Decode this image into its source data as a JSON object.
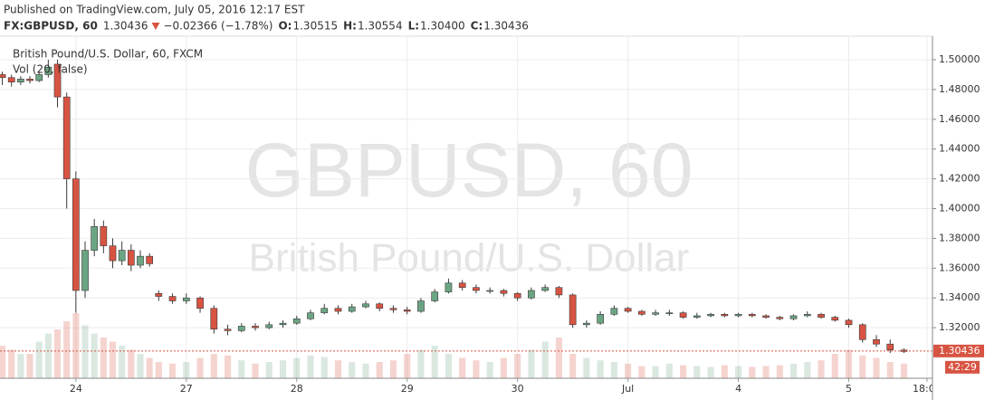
{
  "header": {
    "published": "Published on TradingView.com, July 05, 2016 12:17 EST",
    "symbol": "FX:GBPUSD, 60",
    "last": "1.30436",
    "change": "−0.02366 (−1.78%)",
    "ohlc": [
      {
        "label": "O:",
        "value": "1.30515"
      },
      {
        "label": "H:",
        "value": "1.30554"
      },
      {
        "label": "L:",
        "value": "1.30400"
      },
      {
        "label": "C:",
        "value": "1.30436"
      }
    ]
  },
  "chart_data": {
    "type": "candlestick",
    "watermark": "GBPUSD, 60",
    "watermark_subtitle": "British Pound/U.S. Dollar",
    "legend_title": "British Pound/U.S. Dollar, 60, FXCM",
    "volume_label": "Vol (20, false)",
    "up_color": "#6ba583",
    "down_color": "#d75442",
    "last_price": 1.30436,
    "countdown": "42:29",
    "xlim": [
      -16.5,
      186.2
    ],
    "ylim": [
      1.28602,
      1.51581
    ],
    "xticks": [
      {
        "value": 0,
        "label": "24"
      },
      {
        "value": 24,
        "label": "27"
      },
      {
        "value": 48,
        "label": "28"
      },
      {
        "value": 72,
        "label": "29"
      },
      {
        "value": 96,
        "label": "30"
      },
      {
        "value": 120,
        "label": "Jul"
      },
      {
        "value": 144,
        "label": "4"
      },
      {
        "value": 168,
        "label": "5"
      },
      {
        "value": 185,
        "label": "18:00"
      }
    ],
    "yticks": [
      {
        "value": 1.5,
        "label": "1.50000"
      },
      {
        "value": 1.48,
        "label": "1.48000"
      },
      {
        "value": 1.46,
        "label": "1.46000"
      },
      {
        "value": 1.44,
        "label": "1.44000"
      },
      {
        "value": 1.42,
        "label": "1.42000"
      },
      {
        "value": 1.4,
        "label": "1.40000"
      },
      {
        "value": 1.38,
        "label": "1.38000"
      },
      {
        "value": 1.36,
        "label": "1.36000"
      },
      {
        "value": 1.34,
        "label": "1.34000"
      },
      {
        "value": 1.32,
        "label": "1.32000"
      }
    ],
    "grid": true,
    "x": [
      -16,
      -14,
      -12,
      -10,
      -8,
      -6,
      -4,
      -2,
      0,
      2,
      4,
      6,
      8,
      10,
      12,
      14,
      16,
      18,
      21,
      24,
      27,
      30,
      33,
      36,
      39,
      42,
      45,
      48,
      51,
      54,
      57,
      60,
      63,
      66,
      69,
      72,
      75,
      78,
      81,
      84,
      87,
      90,
      93,
      96,
      99,
      102,
      105,
      108,
      111,
      114,
      117,
      120,
      123,
      126,
      129,
      132,
      135,
      138,
      141,
      144,
      147,
      150,
      153,
      156,
      159,
      162,
      165,
      168,
      171,
      174,
      177,
      180
    ],
    "open": [
      1.49,
      1.488,
      1.485,
      1.487,
      1.486,
      1.49,
      1.497,
      1.475,
      1.42,
      1.345,
      1.372,
      1.388,
      1.375,
      1.365,
      1.372,
      1.362,
      1.368,
      1.343,
      1.341,
      1.338,
      1.34,
      1.333,
      1.319,
      1.318,
      1.321,
      1.32,
      1.322,
      1.323,
      1.326,
      1.33,
      1.333,
      1.331,
      1.334,
      1.336,
      1.333,
      1.332,
      1.331,
      1.338,
      1.344,
      1.35,
      1.347,
      1.345,
      1.345,
      1.343,
      1.34,
      1.345,
      1.347,
      1.342,
      1.322,
      1.323,
      1.329,
      1.333,
      1.331,
      1.329,
      1.33,
      1.33,
      1.327,
      1.328,
      1.329,
      1.328,
      1.329,
      1.328,
      1.327,
      1.326,
      1.328,
      1.329,
      1.327,
      1.325,
      1.322,
      1.312,
      1.309,
      1.305
    ],
    "high": [
      1.492,
      1.49,
      1.489,
      1.489,
      1.492,
      1.5,
      1.5,
      1.478,
      1.425,
      1.378,
      1.393,
      1.392,
      1.38,
      1.378,
      1.376,
      1.372,
      1.37,
      1.345,
      1.343,
      1.343,
      1.341,
      1.335,
      1.322,
      1.323,
      1.323,
      1.324,
      1.325,
      1.328,
      1.332,
      1.336,
      1.335,
      1.336,
      1.338,
      1.337,
      1.335,
      1.334,
      1.34,
      1.346,
      1.353,
      1.352,
      1.349,
      1.347,
      1.346,
      1.344,
      1.347,
      1.349,
      1.348,
      1.343,
      1.325,
      1.331,
      1.335,
      1.334,
      1.332,
      1.332,
      1.332,
      1.331,
      1.33,
      1.33,
      1.33,
      1.33,
      1.33,
      1.329,
      1.328,
      1.329,
      1.331,
      1.33,
      1.328,
      1.326,
      1.323,
      1.315,
      1.312,
      1.306
    ],
    "low": [
      1.483,
      1.482,
      1.483,
      1.484,
      1.485,
      1.488,
      1.468,
      1.4,
      1.33,
      1.34,
      1.368,
      1.37,
      1.36,
      1.362,
      1.358,
      1.36,
      1.361,
      1.338,
      1.336,
      1.336,
      1.33,
      1.316,
      1.315,
      1.317,
      1.318,
      1.319,
      1.32,
      1.322,
      1.325,
      1.329,
      1.329,
      1.33,
      1.333,
      1.331,
      1.33,
      1.329,
      1.33,
      1.337,
      1.343,
      1.345,
      1.343,
      1.343,
      1.341,
      1.338,
      1.339,
      1.344,
      1.34,
      1.32,
      1.32,
      1.322,
      1.328,
      1.33,
      1.328,
      1.328,
      1.328,
      1.326,
      1.326,
      1.327,
      1.327,
      1.327,
      1.327,
      1.326,
      1.325,
      1.325,
      1.327,
      1.326,
      1.324,
      1.32,
      1.31,
      1.307,
      1.303,
      1.303
    ],
    "close": [
      1.488,
      1.485,
      1.487,
      1.486,
      1.49,
      1.495,
      1.475,
      1.42,
      1.345,
      1.372,
      1.388,
      1.375,
      1.365,
      1.372,
      1.362,
      1.368,
      1.363,
      1.341,
      1.338,
      1.34,
      1.333,
      1.319,
      1.318,
      1.321,
      1.32,
      1.322,
      1.323,
      1.326,
      1.33,
      1.333,
      1.331,
      1.334,
      1.336,
      1.333,
      1.332,
      1.331,
      1.338,
      1.344,
      1.35,
      1.347,
      1.345,
      1.345,
      1.343,
      1.34,
      1.345,
      1.347,
      1.342,
      1.322,
      1.323,
      1.329,
      1.333,
      1.331,
      1.329,
      1.33,
      1.33,
      1.327,
      1.328,
      1.329,
      1.328,
      1.329,
      1.328,
      1.327,
      1.326,
      1.328,
      1.329,
      1.327,
      1.325,
      1.322,
      1.312,
      1.309,
      1.305,
      1.304
    ],
    "volume": [
      40,
      35,
      30,
      30,
      45,
      55,
      60,
      70,
      80,
      65,
      55,
      50,
      45,
      40,
      35,
      30,
      25,
      20,
      18,
      20,
      25,
      30,
      28,
      22,
      18,
      20,
      22,
      25,
      28,
      26,
      22,
      20,
      18,
      20,
      22,
      30,
      35,
      40,
      30,
      25,
      22,
      20,
      25,
      30,
      35,
      45,
      50,
      30,
      25,
      22,
      20,
      18,
      15,
      15,
      18,
      16,
      15,
      14,
      16,
      15,
      14,
      15,
      16,
      18,
      20,
      22,
      30,
      35,
      28,
      25,
      20,
      18
    ]
  }
}
